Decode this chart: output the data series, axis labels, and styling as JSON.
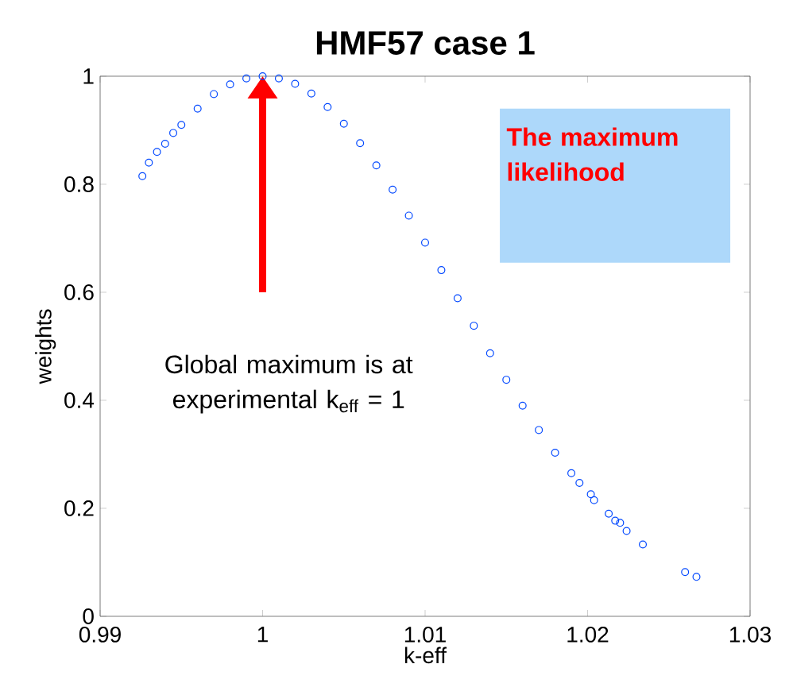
{
  "chart_data": {
    "type": "scatter",
    "title": "HMF57 case 1",
    "xlabel": "k-eff",
    "ylabel": "weights",
    "x": [
      0.9926,
      0.993,
      0.9935,
      0.994,
      0.9945,
      0.995,
      0.996,
      0.997,
      0.998,
      0.999,
      1.0,
      1.001,
      1.002,
      1.003,
      1.004,
      1.005,
      1.006,
      1.007,
      1.008,
      1.009,
      1.01,
      1.011,
      1.012,
      1.013,
      1.014,
      1.015,
      1.016,
      1.017,
      1.018,
      1.019,
      1.0195,
      1.0202,
      1.0204,
      1.0213,
      1.0217,
      1.022,
      1.0224,
      1.0234,
      1.026,
      1.0267
    ],
    "values": [
      0.815,
      0.84,
      0.86,
      0.875,
      0.895,
      0.91,
      0.94,
      0.967,
      0.985,
      0.996,
      1.0,
      0.996,
      0.986,
      0.968,
      0.943,
      0.912,
      0.876,
      0.835,
      0.79,
      0.742,
      0.692,
      0.641,
      0.589,
      0.538,
      0.487,
      0.438,
      0.39,
      0.345,
      0.303,
      0.265,
      0.247,
      0.226,
      0.215,
      0.19,
      0.177,
      0.173,
      0.158,
      0.133,
      0.082,
      0.073
    ],
    "color": "#0047ff",
    "marker": "circle",
    "xlim": [
      0.99,
      1.03
    ],
    "xticks": [
      0.99,
      1,
      1.01,
      1.02,
      1.03
    ],
    "ylim": [
      0,
      1
    ],
    "yticks": [
      0,
      0.2,
      0.4,
      0.6,
      0.8,
      1
    ],
    "annotations": [
      "Global maximum is at experimental k$_{eff}$ = 1",
      "The maximum likelihood"
    ]
  }
}
